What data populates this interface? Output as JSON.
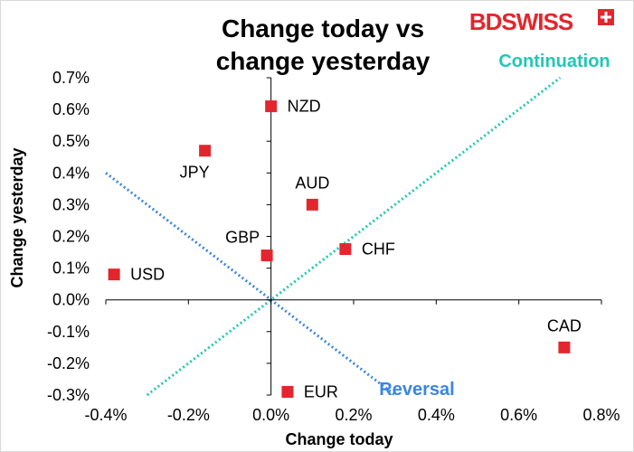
{
  "chart_data": {
    "type": "scatter",
    "title_lines": [
      "Change today vs",
      "change yesterday"
    ],
    "xlabel": "Change today",
    "ylabel": "Change yesterday",
    "xlim": [
      -0.4,
      0.8
    ],
    "ylim": [
      -0.3,
      0.7
    ],
    "x_ticks": [
      -0.4,
      -0.2,
      0.0,
      0.2,
      0.4,
      0.6,
      0.8
    ],
    "x_tick_labels": [
      "-0.4%",
      "-0.2%",
      "0.0%",
      "0.2%",
      "0.4%",
      "0.6%",
      "0.8%"
    ],
    "y_ticks": [
      0.7,
      0.6,
      0.5,
      0.4,
      0.3,
      0.2,
      0.1,
      0.0,
      -0.1,
      -0.2,
      -0.3
    ],
    "y_tick_labels": [
      "0.7%",
      "0.6%",
      "0.5%",
      "0.4%",
      "0.3%",
      "0.2%",
      "0.1%",
      "0.0%",
      "-0.1%",
      "-0.2%",
      "-0.3%"
    ],
    "points": [
      {
        "label": "NZD",
        "x": 0.0,
        "y": 0.61,
        "label_pos": "right"
      },
      {
        "label": "JPY",
        "x": -0.16,
        "y": 0.47,
        "label_pos": "below-left"
      },
      {
        "label": "AUD",
        "x": 0.1,
        "y": 0.3,
        "label_pos": "above"
      },
      {
        "label": "GBP",
        "x": -0.01,
        "y": 0.14,
        "label_pos": "above-left"
      },
      {
        "label": "CHF",
        "x": 0.18,
        "y": 0.16,
        "label_pos": "right"
      },
      {
        "label": "USD",
        "x": -0.38,
        "y": 0.08,
        "label_pos": "right"
      },
      {
        "label": "CAD",
        "x": 0.71,
        "y": -0.15,
        "label_pos": "above"
      },
      {
        "label": "EUR",
        "x": 0.04,
        "y": -0.29,
        "label_pos": "right"
      }
    ],
    "reference_lines": [
      {
        "name": "Continuation",
        "color": "#1fc8b4",
        "from": [
          -0.3,
          -0.3
        ],
        "to": [
          0.7,
          0.7
        ]
      },
      {
        "name": "Reversal",
        "color": "#3a86e0",
        "from": [
          -0.4,
          0.4
        ],
        "to": [
          0.3,
          -0.3
        ]
      }
    ],
    "annotations": [
      {
        "text": "Continuation",
        "color": "#1fc8b4"
      },
      {
        "text": "Reversal",
        "color": "#3a86e0"
      }
    ],
    "marker_color": "#e3262d",
    "grid": false
  },
  "logo": {
    "text": "BDSWISS"
  }
}
